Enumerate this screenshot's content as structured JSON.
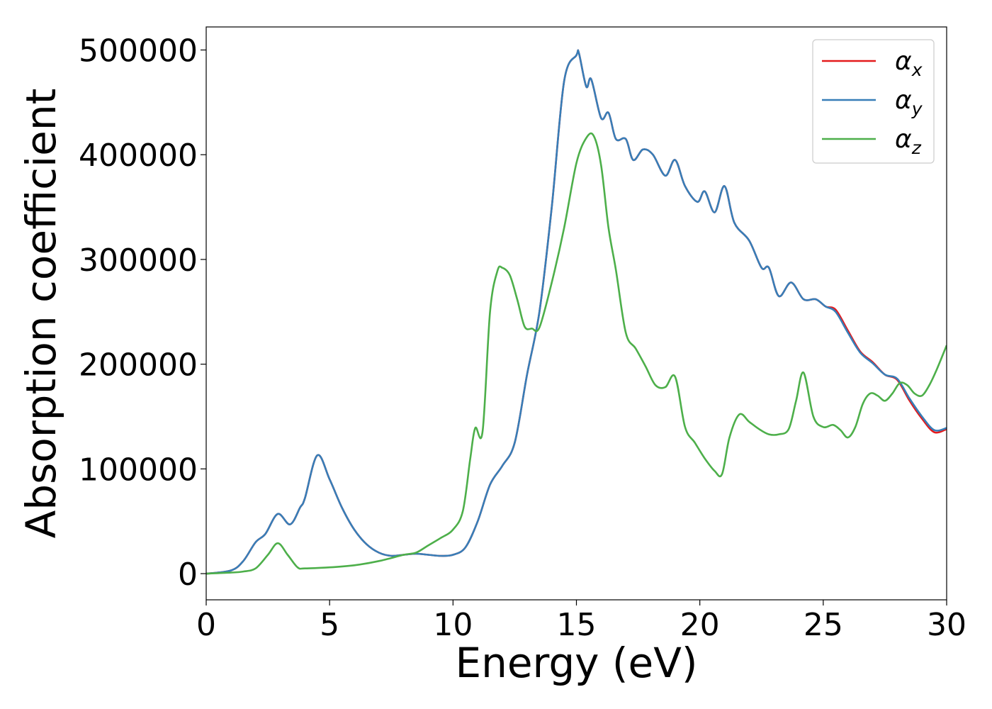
{
  "chart_data": {
    "type": "line",
    "xlabel": "Energy (eV)",
    "ylabel": "Absorption coefficient",
    "xlim": [
      0,
      30
    ],
    "ylim": [
      -25000,
      522000
    ],
    "xticks": [
      0,
      5,
      10,
      15,
      20,
      25,
      30
    ],
    "xtick_labels": [
      "0",
      "5",
      "10",
      "15",
      "20",
      "25",
      "30"
    ],
    "yticks": [
      0,
      100000,
      200000,
      300000,
      400000,
      500000
    ],
    "ytick_labels": [
      "0",
      "100000",
      "200000",
      "300000",
      "400000",
      "500000"
    ],
    "grid": false,
    "legend_position": "top-right",
    "series": [
      {
        "name": "α",
        "subscript": "x",
        "color": "#e41a1c",
        "x": [
          0,
          1,
          1.5,
          2,
          2.4,
          2.9,
          3.4,
          3.8,
          4.0,
          4.5,
          5.0,
          5.5,
          6.0,
          6.5,
          7.0,
          7.5,
          8.0,
          8.5,
          9.0,
          9.5,
          10.0,
          10.5,
          11.0,
          11.5,
          12.0,
          12.5,
          13.0,
          13.5,
          14.0,
          14.5,
          15.0,
          15.1,
          15.4,
          15.6,
          16.0,
          16.3,
          16.6,
          17.0,
          17.3,
          17.7,
          18.1,
          18.6,
          19.0,
          19.4,
          19.9,
          20.2,
          20.6,
          21.0,
          21.4,
          22.0,
          22.5,
          22.8,
          23.2,
          23.7,
          24.2,
          24.7,
          25.1,
          25.5,
          26.0,
          26.5,
          27.0,
          27.5,
          28.0,
          28.5,
          29.0,
          29.5,
          30.0
        ],
        "values": [
          0,
          3000,
          12000,
          30000,
          38000,
          57000,
          47000,
          63000,
          72000,
          113000,
          90000,
          63000,
          42000,
          28000,
          20000,
          17000,
          18000,
          19000,
          18000,
          17000,
          18000,
          25000,
          50000,
          85000,
          103000,
          125000,
          190000,
          250000,
          350000,
          470000,
          495000,
          497000,
          465000,
          472000,
          435000,
          440000,
          415000,
          415000,
          395000,
          405000,
          400000,
          380000,
          395000,
          370000,
          355000,
          365000,
          345000,
          370000,
          335000,
          318000,
          292000,
          292000,
          265000,
          278000,
          262000,
          262000,
          255000,
          252000,
          232000,
          212000,
          202000,
          190000,
          185000,
          165000,
          148000,
          135000,
          138000
        ]
      },
      {
        "name": "α",
        "subscript": "y",
        "color": "#377eb8",
        "x": [
          0,
          1,
          1.5,
          2,
          2.4,
          2.9,
          3.4,
          3.8,
          4.0,
          4.5,
          5.0,
          5.5,
          6.0,
          6.5,
          7.0,
          7.5,
          8.0,
          8.5,
          9.0,
          9.5,
          10.0,
          10.5,
          11.0,
          11.5,
          12.0,
          12.5,
          13.0,
          13.5,
          14.0,
          14.5,
          15.0,
          15.1,
          15.4,
          15.6,
          16.0,
          16.3,
          16.6,
          17.0,
          17.3,
          17.7,
          18.1,
          18.6,
          19.0,
          19.4,
          19.9,
          20.2,
          20.6,
          21.0,
          21.4,
          22.0,
          22.5,
          22.8,
          23.2,
          23.7,
          24.2,
          24.7,
          25.1,
          25.5,
          26.0,
          26.5,
          27.0,
          27.5,
          28.0,
          28.5,
          29.0,
          29.5,
          30.0
        ],
        "values": [
          0,
          3000,
          12000,
          30000,
          38000,
          57000,
          47000,
          63000,
          72000,
          113000,
          90000,
          63000,
          42000,
          28000,
          20000,
          17000,
          18000,
          19000,
          18000,
          17000,
          18000,
          25000,
          50000,
          85000,
          103000,
          125000,
          190000,
          250000,
          350000,
          470000,
          495000,
          497000,
          465000,
          472000,
          435000,
          440000,
          415000,
          415000,
          395000,
          405000,
          400000,
          380000,
          395000,
          370000,
          355000,
          365000,
          345000,
          370000,
          335000,
          318000,
          292000,
          292000,
          265000,
          278000,
          262000,
          262000,
          255000,
          250000,
          230000,
          211000,
          201000,
          190000,
          186000,
          167000,
          150000,
          137000,
          139000
        ]
      },
      {
        "name": "α",
        "subscript": "z",
        "color": "#4daf4a",
        "x": [
          0,
          1,
          1.5,
          2,
          2.5,
          2.9,
          3.3,
          3.7,
          4.0,
          5.0,
          6.0,
          7.0,
          8.0,
          8.5,
          9.0,
          9.5,
          10.0,
          10.4,
          10.7,
          10.9,
          11.2,
          11.5,
          11.8,
          12.0,
          12.3,
          12.6,
          12.9,
          13.2,
          13.5,
          14.0,
          14.5,
          15.0,
          15.4,
          15.7,
          16.0,
          16.3,
          16.6,
          17.0,
          17.4,
          17.8,
          18.2,
          18.6,
          19.0,
          19.4,
          19.8,
          20.2,
          20.6,
          20.9,
          21.2,
          21.6,
          22.0,
          22.4,
          22.8,
          23.2,
          23.6,
          23.9,
          24.2,
          24.6,
          25.0,
          25.4,
          25.7,
          26.0,
          26.3,
          26.6,
          26.9,
          27.2,
          27.5,
          27.8,
          28.1,
          28.4,
          28.7,
          29.0,
          29.3,
          29.6,
          30.0
        ],
        "values": [
          0,
          1000,
          2000,
          5000,
          18000,
          29000,
          18000,
          6000,
          5000,
          6000,
          8000,
          12000,
          18000,
          20000,
          27000,
          34000,
          42000,
          60000,
          110000,
          139000,
          136000,
          250000,
          289000,
          292000,
          285000,
          262000,
          236000,
          234000,
          235000,
          278000,
          330000,
          392000,
          416000,
          418000,
          390000,
          330000,
          290000,
          230000,
          215000,
          198000,
          180000,
          178000,
          188000,
          140000,
          125000,
          110000,
          98000,
          95000,
          130000,
          152000,
          145000,
          138000,
          133000,
          133000,
          138000,
          165000,
          192000,
          150000,
          140000,
          142000,
          137000,
          130000,
          140000,
          162000,
          172000,
          170000,
          165000,
          172000,
          182000,
          180000,
          172000,
          170000,
          180000,
          195000,
          218000
        ]
      }
    ]
  }
}
